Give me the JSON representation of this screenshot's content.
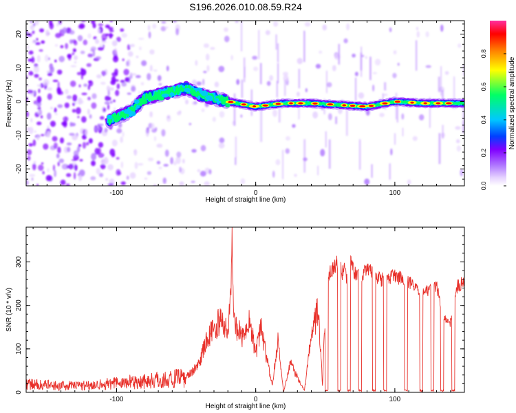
{
  "title": "S196.2026.010.08.59.R24",
  "colors": {
    "snr_line": "#e8302a",
    "axis": "#000000",
    "background": "#ffffff",
    "colormap": [
      "#ffffff",
      "#e6d2ff",
      "#b27cff",
      "#8000ff",
      "#0040ff",
      "#00c8ff",
      "#00ff66",
      "#ffff00",
      "#ff7f00",
      "#ff0000",
      "#ff2f9f"
    ]
  },
  "chart_data": [
    {
      "type": "heatmap",
      "name": "spectrogram",
      "xlabel": "Height of straight line (km)",
      "ylabel": "Frequency (Hz)",
      "xlim": [
        -165,
        150
      ],
      "ylim": [
        -25,
        24
      ],
      "xticks": [
        -100,
        0,
        100
      ],
      "xtick_labels": [
        "-100",
        "0",
        "100"
      ],
      "yticks": [
        -20,
        -10,
        0,
        10,
        20
      ],
      "ytick_labels": [
        "-20",
        "-10",
        "0",
        "10",
        "20"
      ],
      "colorbar": {
        "label": "Normalized spectral amplitude",
        "range": [
          0,
          1
        ],
        "ticks": [
          0,
          0.2,
          0.4,
          0.6,
          0.8
        ],
        "tick_labels": [
          "0.0",
          "0.2",
          "0.4",
          "0.6",
          "0.8"
        ]
      },
      "ridge": {
        "description": "Dominant frequency track",
        "x": [
          -105,
          -90,
          -80,
          -70,
          -60,
          -50,
          -40,
          -30,
          -20,
          0,
          20,
          40,
          60,
          80,
          100,
          120,
          148
        ],
        "y": [
          -5.5,
          -3,
          1,
          2,
          3,
          4,
          2,
          1,
          0,
          -1.5,
          -0.5,
          -0.5,
          -1,
          -1.5,
          0,
          -0.5,
          -0.5
        ]
      }
    },
    {
      "type": "line",
      "name": "snr",
      "xlabel": "Height of straight line (km)",
      "ylabel": "SNR (10 * v/v)",
      "xlim": [
        -165,
        150
      ],
      "ylim": [
        0,
        380
      ],
      "xticks": [
        -100,
        0,
        100
      ],
      "xtick_labels": [
        "-100",
        "0",
        "100"
      ],
      "yticks": [
        0,
        100,
        200,
        300
      ],
      "ytick_labels": [
        "0",
        "100",
        "200",
        "300"
      ],
      "x": [
        -165,
        -140,
        -120,
        -100,
        -80,
        -60,
        -50,
        -45,
        -40,
        -35,
        -30,
        -25,
        -20,
        -18,
        -17,
        -16,
        -12,
        -8,
        -4,
        0,
        4,
        8,
        12,
        16,
        20,
        25,
        30,
        35,
        40,
        45,
        48,
        50,
        53,
        55,
        57,
        60,
        62,
        64,
        66,
        68,
        70,
        75,
        80,
        90,
        100,
        110,
        120,
        130,
        135,
        140,
        145,
        150
      ],
      "y": [
        25,
        20,
        22,
        28,
        35,
        40,
        45,
        60,
        90,
        150,
        180,
        200,
        170,
        250,
        380,
        200,
        170,
        150,
        200,
        110,
        180,
        90,
        20,
        150,
        0,
        80,
        40,
        5,
        160,
        230,
        20,
        230,
        290,
        300,
        310,
        320,
        290,
        300,
        270,
        320,
        300,
        280,
        305,
        275,
        285,
        270,
        240,
        260,
        180,
        170,
        260,
        270
      ]
    }
  ]
}
